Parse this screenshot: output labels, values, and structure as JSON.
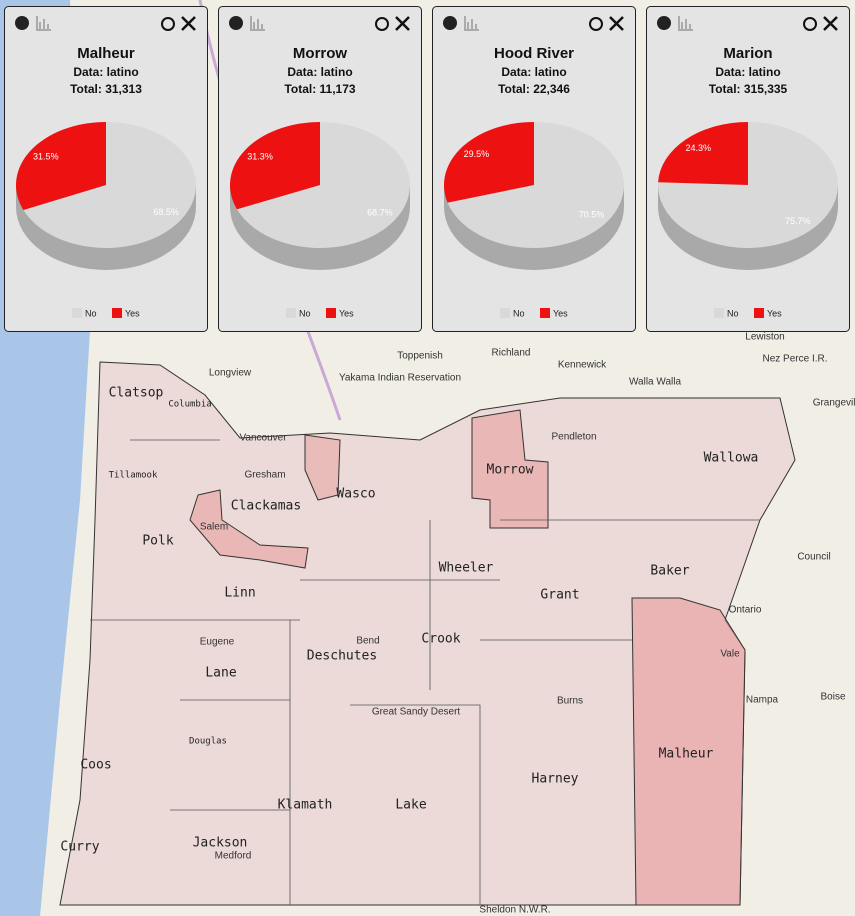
{
  "chart_data": [
    {
      "type": "pie",
      "title": "Malheur",
      "subtitle": "Data: latino",
      "total": "Total: 31,313",
      "categories": [
        "No",
        "Yes"
      ],
      "values": [
        68.5,
        31.5
      ],
      "value_labels": [
        "68.5%",
        "31.5%"
      ],
      "colors": [
        "#d9d9d9",
        "#ee1111"
      ]
    },
    {
      "type": "pie",
      "title": "Morrow",
      "subtitle": "Data: latino",
      "total": "Total: 11,173",
      "categories": [
        "No",
        "Yes"
      ],
      "values": [
        68.7,
        31.3
      ],
      "value_labels": [
        "68.7%",
        "31.3%"
      ],
      "colors": [
        "#d9d9d9",
        "#ee1111"
      ]
    },
    {
      "type": "pie",
      "title": "Hood River",
      "subtitle": "Data: latino",
      "total": "Total: 22,346",
      "categories": [
        "No",
        "Yes"
      ],
      "values": [
        70.5,
        29.5
      ],
      "value_labels": [
        "70.5%",
        "29.5%"
      ],
      "colors": [
        "#d9d9d9",
        "#ee1111"
      ]
    },
    {
      "type": "pie",
      "title": "Marion",
      "subtitle": "Data: latino",
      "total": "Total: 315,335",
      "categories": [
        "No",
        "Yes"
      ],
      "values": [
        75.7,
        24.3
      ],
      "value_labels": [
        "75.7%",
        "24.3%"
      ],
      "colors": [
        "#d9d9d9",
        "#ee1111"
      ]
    }
  ],
  "map": {
    "counties": [
      "Clatsop",
      "Wallowa",
      "Morrow",
      "Clackamas",
      "Wasco",
      "Polk",
      "Wheeler",
      "Baker",
      "Grant",
      "Linn",
      "Crook",
      "Deschutes",
      "Lane",
      "Malheur",
      "Harney",
      "Coos",
      "Klamath",
      "Lake",
      "Jackson",
      "Curry",
      "Columbia",
      "Tillamook",
      "Douglas"
    ],
    "places": [
      "Longview",
      "Vancouver",
      "Richland",
      "Kennewick",
      "Walla Walla",
      "Toppenish",
      "Yakama Indian Reservation",
      "Lewiston",
      "Nez Perce I.R.",
      "Nampa",
      "Boise",
      "Council",
      "Grangeville",
      "Gresham",
      "Eugene",
      "Salem",
      "Pendleton",
      "Bend",
      "Medford",
      "Burns",
      "Vale",
      "Ontario",
      "Great Sandy Desert",
      "Sheldon N.W.R."
    ]
  }
}
